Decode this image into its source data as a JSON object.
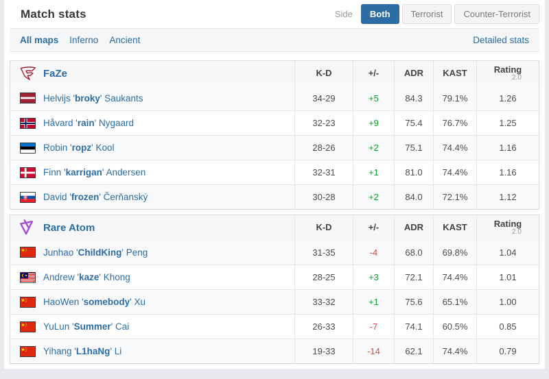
{
  "header": {
    "title": "Match stats",
    "side_label": "Side",
    "tabs": [
      {
        "label": "Both",
        "active": true
      },
      {
        "label": "Terrorist",
        "active": false
      },
      {
        "label": "Counter-Terrorist",
        "active": false
      }
    ]
  },
  "maps_bar": {
    "items": [
      {
        "label": "All maps",
        "active": true
      },
      {
        "label": "Inferno",
        "active": false
      },
      {
        "label": "Ancient",
        "active": false
      }
    ],
    "detailed_stats_label": "Detailed stats"
  },
  "columns": [
    "K-D",
    "+/-",
    "ADR",
    "KAST"
  ],
  "rating_header": {
    "label": "Rating",
    "sub": "2.0"
  },
  "colors": {
    "accent_blue": "#2d6da3",
    "positive_green": "#0b9e2d",
    "negative_red": "#db4a43",
    "faze_red": "#a02836",
    "rare_atom_purple": "#a24fd4"
  },
  "teams": [
    {
      "name": "FaZe",
      "logo": "faze",
      "players": [
        {
          "pre": "Helvijs '",
          "nick": "broky",
          "post": "' Saukants",
          "country": "Latvia",
          "flag": "lv",
          "kd": "34-29",
          "pm": "+5",
          "trend": "pos",
          "adr": "84.3",
          "kast": "79.1%",
          "rating": "1.26"
        },
        {
          "pre": "Håvard '",
          "nick": "rain",
          "post": "' Nygaard",
          "country": "Norway",
          "flag": "no",
          "kd": "32-23",
          "pm": "+9",
          "trend": "pos",
          "adr": "75.4",
          "kast": "76.7%",
          "rating": "1.25"
        },
        {
          "pre": "Robin '",
          "nick": "ropz",
          "post": "' Kool",
          "country": "Estonia",
          "flag": "ee",
          "kd": "28-26",
          "pm": "+2",
          "trend": "pos",
          "adr": "75.1",
          "kast": "74.4%",
          "rating": "1.16"
        },
        {
          "pre": "Finn '",
          "nick": "karrigan",
          "post": "' Andersen",
          "country": "Denmark",
          "flag": "dk",
          "kd": "32-31",
          "pm": "+1",
          "trend": "pos",
          "adr": "81.0",
          "kast": "74.4%",
          "rating": "1.16"
        },
        {
          "pre": "David '",
          "nick": "frozen",
          "post": "' Čerňanský",
          "country": "Slovakia",
          "flag": "sk",
          "kd": "30-28",
          "pm": "+2",
          "trend": "pos",
          "adr": "84.0",
          "kast": "72.1%",
          "rating": "1.12"
        }
      ]
    },
    {
      "name": "Rare Atom",
      "logo": "rareatom",
      "players": [
        {
          "pre": "Junhao '",
          "nick": "ChildKing",
          "post": "' Peng",
          "country": "China",
          "flag": "cn",
          "kd": "31-35",
          "pm": "-4",
          "trend": "neg",
          "adr": "68.0",
          "kast": "69.8%",
          "rating": "1.04"
        },
        {
          "pre": "Andrew '",
          "nick": "kaze",
          "post": "' Khong",
          "country": "Malaysia",
          "flag": "my",
          "kd": "28-25",
          "pm": "+3",
          "trend": "pos",
          "adr": "72.1",
          "kast": "74.4%",
          "rating": "1.01"
        },
        {
          "pre": "HaoWen '",
          "nick": "somebody",
          "post": "' Xu",
          "country": "China",
          "flag": "cn",
          "kd": "33-32",
          "pm": "+1",
          "trend": "pos",
          "adr": "75.6",
          "kast": "65.1%",
          "rating": "1.00"
        },
        {
          "pre": "YuLun '",
          "nick": "Summer",
          "post": "' Cai",
          "country": "China",
          "flag": "cn",
          "kd": "26-33",
          "pm": "-7",
          "trend": "neg",
          "adr": "74.1",
          "kast": "60.5%",
          "rating": "0.85"
        },
        {
          "pre": "Yihang '",
          "nick": "L1haNg",
          "post": "' Li",
          "country": "China",
          "flag": "cn",
          "kd": "19-33",
          "pm": "-14",
          "trend": "neg",
          "adr": "62.1",
          "kast": "74.4%",
          "rating": "0.79"
        }
      ]
    }
  ]
}
